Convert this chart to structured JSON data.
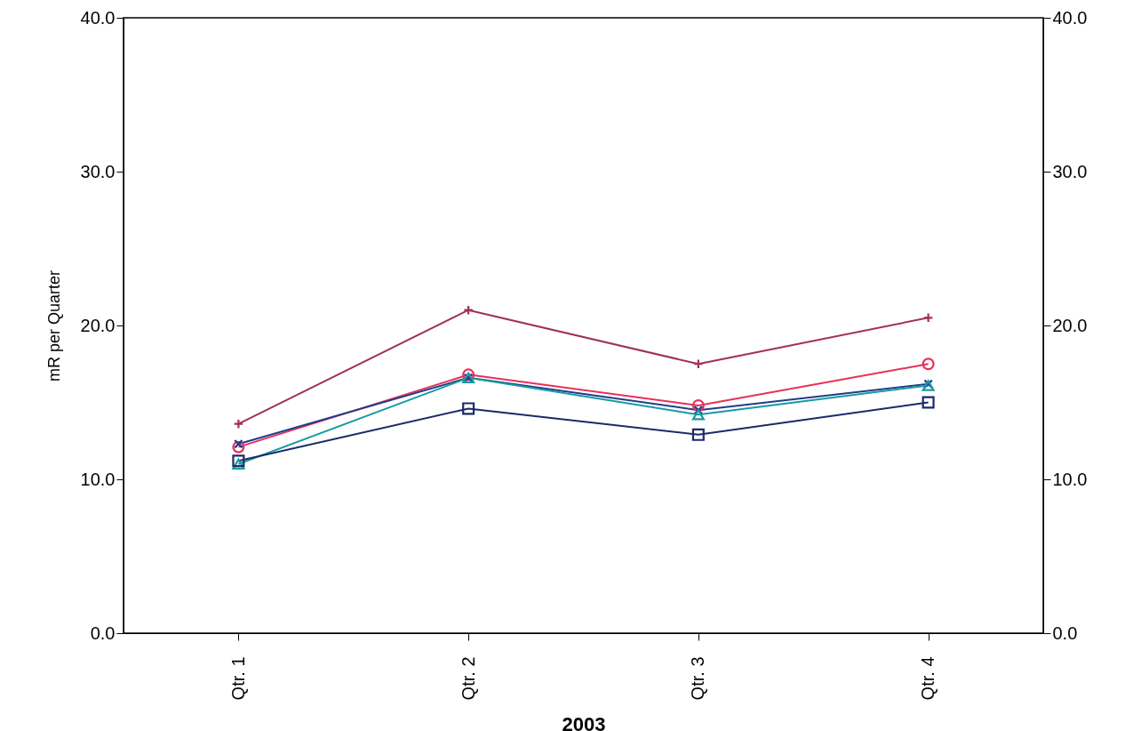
{
  "chart_data": {
    "type": "line",
    "xlabel": "2003",
    "ylabel": "mR per Quarter",
    "categories": [
      "Qtr. 1",
      "Qtr. 2",
      "Qtr. 3",
      "Qtr. 4"
    ],
    "series": [
      {
        "color": "#a0305a",
        "marker": "cross",
        "values": [
          13.6,
          21.0,
          17.5,
          20.5
        ]
      },
      {
        "color": "#e8305a",
        "marker": "circle",
        "values": [
          12.1,
          16.8,
          14.8,
          17.5
        ]
      },
      {
        "color": "#203c8c",
        "marker": "x",
        "values": [
          12.3,
          16.6,
          14.5,
          16.2
        ]
      },
      {
        "color": "#1a9aa0",
        "marker": "triangle",
        "values": [
          11.0,
          16.6,
          14.2,
          16.1
        ]
      },
      {
        "color": "#1c2a6a",
        "marker": "square",
        "values": [
          11.2,
          14.6,
          12.9,
          15.0
        ]
      }
    ],
    "ylim": [
      0,
      40
    ],
    "yticks": [
      {
        "value": 0,
        "label": "0.0"
      },
      {
        "value": 10,
        "label": "10.0"
      },
      {
        "value": 20,
        "label": "20.0"
      },
      {
        "value": 30,
        "label": "30.0"
      },
      {
        "value": 40,
        "label": "40.0"
      }
    ],
    "y2lim": [
      0,
      40
    ],
    "y2ticks": [
      {
        "value": 0,
        "label": "0.0"
      },
      {
        "value": 10,
        "label": "10.0"
      },
      {
        "value": 20,
        "label": "20.0"
      },
      {
        "value": 30,
        "label": "30.0"
      },
      {
        "value": 40,
        "label": "40.0"
      }
    ],
    "grid": false,
    "line_style": "solid"
  }
}
